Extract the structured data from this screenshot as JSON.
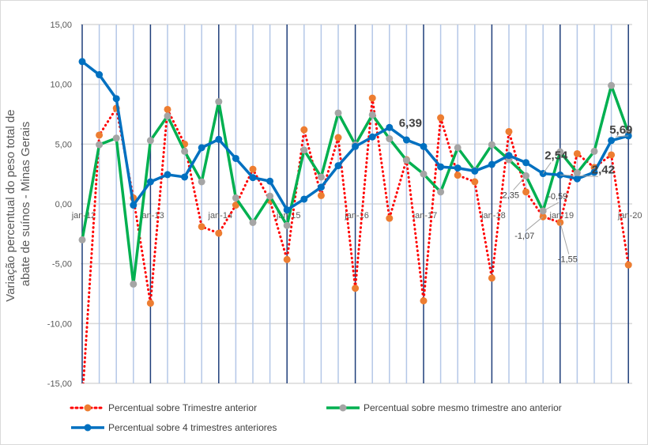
{
  "chart_data": {
    "type": "line",
    "title": "",
    "ylabel": "Variação percentual do peso total de abate de suínos - Minas Gerais",
    "ylabel_lines": [
      "Variação percentual do peso total de",
      "abate de suínos - Minas Gerais"
    ],
    "ylim": [
      -15,
      15
    ],
    "yticks": [
      "-15,00",
      "-10,00",
      "-5,00",
      "0,00",
      "5,00",
      "10,00",
      "15,00"
    ],
    "ytick_values": [
      -15,
      -10,
      -5,
      0,
      5,
      10,
      15
    ],
    "xtick_labels": [
      "jan-12",
      "jan-13",
      "jan-14",
      "jan-15",
      "jan-16",
      "jan-17",
      "jan-18",
      "jan-19",
      "jan-20"
    ],
    "x_quarters": 33,
    "grid": true,
    "legend_position": "bottom",
    "series": [
      {
        "name": "Percentual sobre Trimestre anterior",
        "color": "#FF0000",
        "marker_color": "#ED7D31",
        "style": "dotted",
        "values": [
          -16.5,
          5.75,
          8.0,
          0.5,
          -8.3,
          7.9,
          5.0,
          -1.9,
          -2.45,
          -0.1,
          2.9,
          0.3,
          -4.65,
          6.2,
          0.7,
          5.55,
          -7.05,
          8.85,
          -1.2,
          3.7,
          -8.1,
          7.2,
          2.4,
          1.85,
          -6.2,
          6.05,
          1.0,
          -1.07,
          -1.55,
          4.2,
          3.05,
          4.1,
          -5.1
        ]
      },
      {
        "name": "Percentual sobre mesmo trimestre ano anterior",
        "color": "#00B050",
        "marker_color": "#A5A5A5",
        "style": "solid",
        "values": [
          -3.0,
          4.95,
          5.5,
          -6.7,
          5.3,
          7.35,
          4.4,
          1.85,
          8.55,
          0.5,
          -1.55,
          0.65,
          -1.8,
          4.5,
          2.25,
          7.6,
          4.95,
          7.45,
          5.45,
          3.65,
          2.5,
          1.0,
          4.7,
          2.8,
          4.95,
          3.7,
          2.35,
          -0.59,
          4.35,
          2.6,
          4.4,
          9.9,
          5.95
        ]
      },
      {
        "name": "Percentual sobre 4 trimestres anteriores",
        "color": "#0070C0",
        "marker_color": "#0070C0",
        "style": "solid",
        "values": [
          11.9,
          10.8,
          8.8,
          -0.1,
          1.85,
          2.45,
          2.25,
          4.7,
          5.4,
          3.8,
          2.2,
          1.9,
          -0.5,
          0.4,
          1.4,
          3.2,
          4.8,
          5.6,
          6.39,
          5.35,
          4.8,
          3.1,
          3.0,
          2.75,
          3.3,
          4.05,
          3.45,
          2.54,
          2.42,
          2.1,
          2.65,
          5.3,
          5.69
        ]
      }
    ],
    "data_labels": [
      {
        "text": "6,39",
        "series": 2,
        "index": 18,
        "bold": true
      },
      {
        "text": "2,54",
        "series": 2,
        "index": 27,
        "bold": true
      },
      {
        "text": "2,42",
        "series": 2,
        "index": 28,
        "bold": true
      },
      {
        "text": "5,69",
        "series": 2,
        "index": 32,
        "bold": true
      },
      {
        "text": "2,35",
        "series": 1,
        "index": 26,
        "bold": false
      },
      {
        "text": "-0,59",
        "series": 1,
        "index": 27,
        "bold": false
      },
      {
        "text": "-1,07",
        "series": 0,
        "index": 27,
        "bold": false
      },
      {
        "text": "-1,55",
        "series": 0,
        "index": 28,
        "bold": false
      }
    ]
  }
}
